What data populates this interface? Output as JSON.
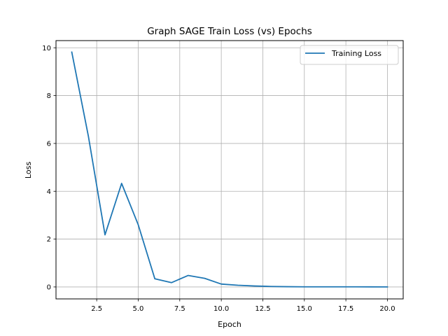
{
  "chart_data": {
    "type": "line",
    "title": "Graph SAGE Train Loss (vs) Epochs",
    "xlabel": "Epoch",
    "ylabel": "Loss",
    "xlim": [
      0.05,
      20.95
    ],
    "ylim": [
      -0.5,
      10.3
    ],
    "xticks": [
      2.5,
      5.0,
      7.5,
      10.0,
      12.5,
      15.0,
      17.5,
      20.0
    ],
    "xtick_labels": [
      "2.5",
      "5.0",
      "7.5",
      "10.0",
      "12.5",
      "15.0",
      "17.5",
      "20.0"
    ],
    "yticks": [
      0,
      2,
      4,
      6,
      8,
      10
    ],
    "ytick_labels": [
      "0",
      "2",
      "4",
      "6",
      "8",
      "10"
    ],
    "grid": true,
    "legend_position": "top-right",
    "series": [
      {
        "name": "Training Loss",
        "color": "#1f77b4",
        "x": [
          1,
          2,
          3,
          4,
          5,
          6,
          7,
          8,
          9,
          10,
          11,
          12,
          13,
          14,
          15,
          16,
          17,
          18,
          19,
          20
        ],
        "y": [
          9.82,
          6.3,
          2.18,
          4.33,
          2.6,
          0.34,
          0.18,
          0.48,
          0.36,
          0.12,
          0.07,
          0.04,
          0.02,
          0.01,
          0.005,
          0.005,
          0.005,
          0.004,
          0.003,
          0.002
        ]
      }
    ]
  }
}
